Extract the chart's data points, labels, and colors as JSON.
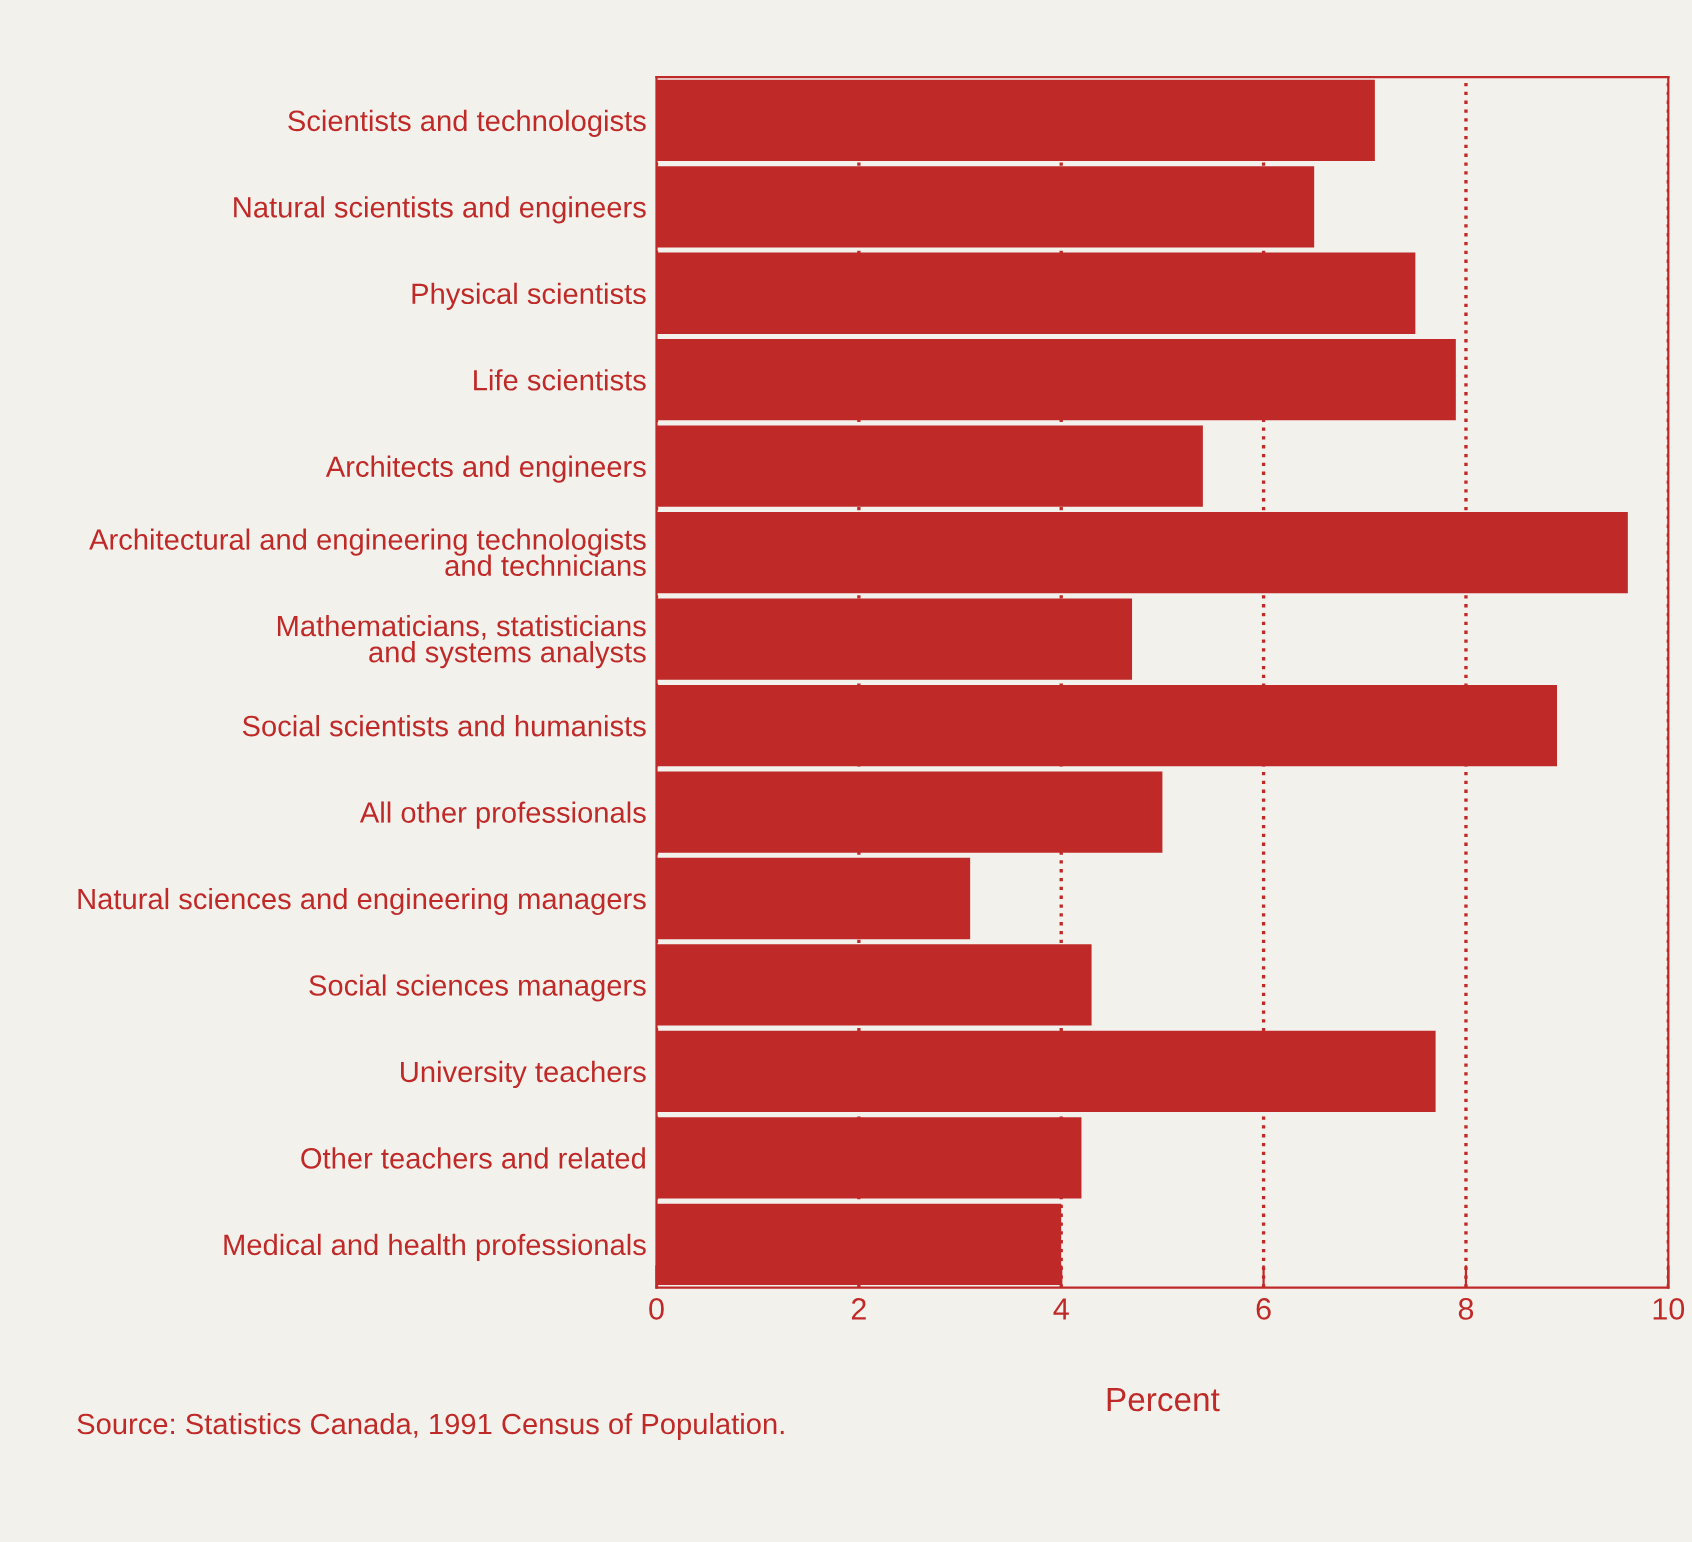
{
  "chart_data": {
    "type": "bar",
    "orientation": "horizontal",
    "xlabel": "Percent",
    "categories": [
      "Scientists and technologists",
      "Natural scientists and engineers",
      "Physical scientists",
      "Life scientists",
      "Architects and engineers",
      "Architectural and engineering technologists\nand technicians",
      "Mathematicians, statisticians\nand systems analysts",
      "Social scientists and humanists",
      "All other professionals",
      "Natural sciences and engineering managers",
      "Social sciences managers",
      "University teachers",
      "Other teachers and related",
      "Medical and health professionals"
    ],
    "values": [
      7.1,
      6.5,
      7.5,
      7.9,
      5.4,
      9.6,
      4.7,
      8.9,
      5.0,
      3.1,
      4.3,
      7.7,
      4.2,
      4.0
    ],
    "color": "#bf2a28",
    "xlim": [
      0,
      10
    ],
    "xticks": [
      0,
      2,
      4,
      6,
      8,
      10
    ],
    "grid": "x",
    "annotations": [
      "Source: Statistics Canada, 1991 Census of Population."
    ]
  }
}
